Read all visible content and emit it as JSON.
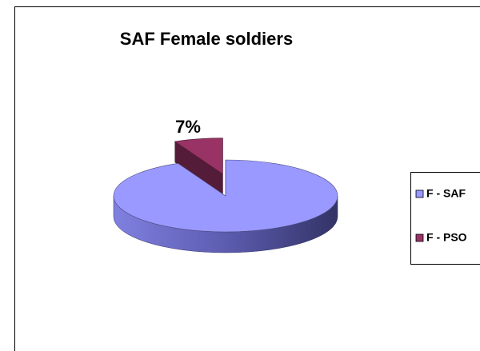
{
  "chart_data": {
    "type": "pie",
    "title": "SAF Female soldiers",
    "categories": [
      "F - SAF",
      "F - PSO"
    ],
    "values": [
      93,
      7
    ],
    "value_labels": [
      null,
      "7%"
    ],
    "colors": [
      "#9999ff",
      "#993366"
    ],
    "legend": "right"
  }
}
